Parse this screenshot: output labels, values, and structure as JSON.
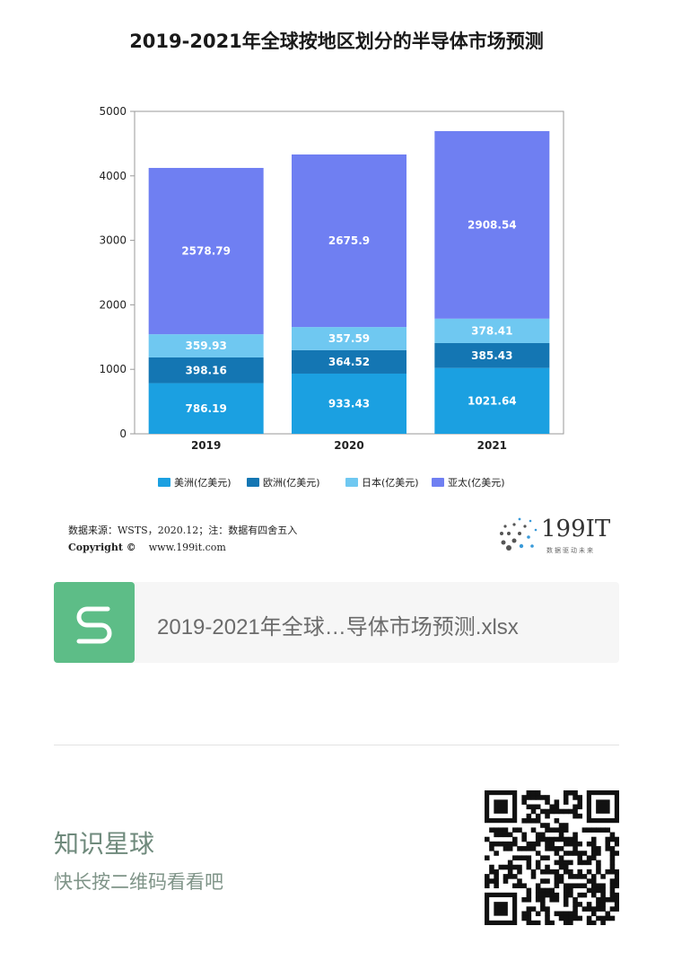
{
  "page": {
    "title": "2019-2021年全球按地区划分的半导体市场预测",
    "source_text": "数据来源：WSTS，2020.12；注：数据有四舍五入",
    "copyright_label": "Copyright ©",
    "copyright_url": "www.199it.com",
    "logo_text": "199IT",
    "logo_sub": "数据驱动未来"
  },
  "file_card": {
    "name": "2019-2021年全球…导体市场预测.xlsx",
    "icon": "spreadsheet-s-icon"
  },
  "footer": {
    "title": "知识星球",
    "subtitle": "快长按二维码看看吧"
  },
  "colors": {
    "americas": "#1ba0e1",
    "europe": "#1476b3",
    "japan": "#6fc8f1",
    "asia_pacific": "#6f7ff2"
  },
  "chart_data": {
    "type": "bar",
    "stacked": true,
    "categories": [
      "2019",
      "2020",
      "2021"
    ],
    "series": [
      {
        "name": "美洲(亿美元)",
        "values": [
          786.19,
          933.43,
          1021.64
        ],
        "color": "#1ba0e1"
      },
      {
        "name": "欧洲(亿美元)",
        "values": [
          398.16,
          364.52,
          385.43
        ],
        "color": "#1476b3"
      },
      {
        "name": "日本(亿美元)",
        "values": [
          359.93,
          357.59,
          378.41
        ],
        "color": "#6fc8f1"
      },
      {
        "name": "亚太(亿美元)",
        "values": [
          2578.79,
          2675.9,
          2908.54
        ],
        "color": "#6f7ff2"
      }
    ],
    "ylim": [
      0,
      5000
    ],
    "yticks": [
      0,
      1000,
      2000,
      3000,
      4000,
      5000
    ],
    "grid": false,
    "legend_position": "bottom"
  }
}
